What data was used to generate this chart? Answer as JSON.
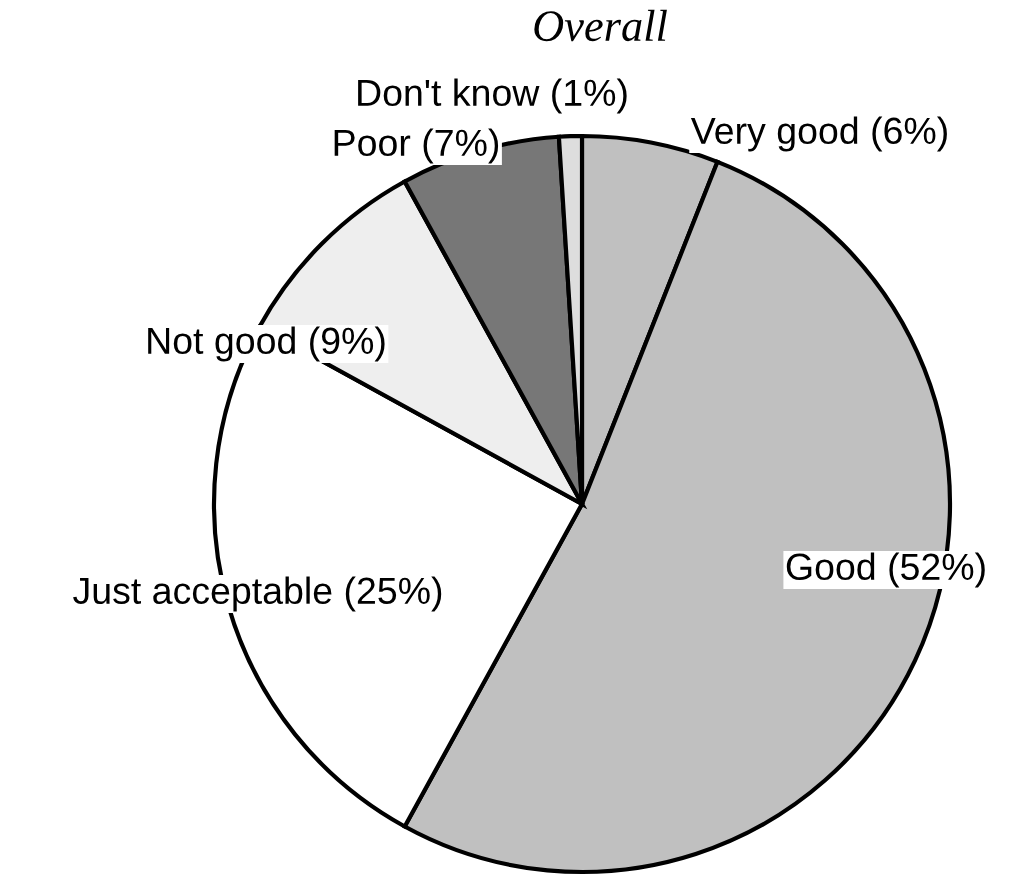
{
  "chart_data": {
    "type": "pie",
    "title": "Overall",
    "categories": [
      "Very good (6%)",
      "Good (52%)",
      "Just acceptable (25%)",
      "Not good (9%)",
      "Poor (7%)",
      "Don't know (1%)"
    ],
    "values": [
      6,
      52,
      25,
      9,
      7,
      1
    ],
    "colors": [
      "#c0c0c0",
      "#c0c0c0",
      "#ffffff",
      "#eeeeee",
      "#777777",
      "#dddddd"
    ]
  }
}
